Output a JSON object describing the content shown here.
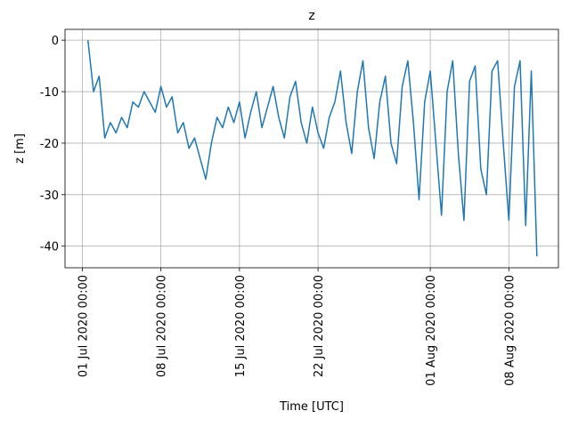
{
  "chart_data": {
    "type": "line",
    "title": "z",
    "x_label": "Time  [UTC]",
    "y_label": "z  [m]",
    "color": "#1f77b4",
    "grid": true,
    "x": [
      "2020-07-01 12:00",
      "2020-07-02 00:00",
      "2020-07-02 12:00",
      "2020-07-03 00:00",
      "2020-07-03 12:00",
      "2020-07-04 00:00",
      "2020-07-04 12:00",
      "2020-07-05 00:00",
      "2020-07-05 12:00",
      "2020-07-06 00:00",
      "2020-07-06 12:00",
      "2020-07-07 00:00",
      "2020-07-07 12:00",
      "2020-07-08 00:00",
      "2020-07-08 12:00",
      "2020-07-09 00:00",
      "2020-07-09 12:00",
      "2020-07-10 00:00",
      "2020-07-10 12:00",
      "2020-07-11 00:00",
      "2020-07-11 12:00",
      "2020-07-12 00:00",
      "2020-07-12 12:00",
      "2020-07-13 00:00",
      "2020-07-13 12:00",
      "2020-07-14 00:00",
      "2020-07-14 12:00",
      "2020-07-15 00:00",
      "2020-07-15 12:00",
      "2020-07-16 00:00",
      "2020-07-16 12:00",
      "2020-07-17 00:00",
      "2020-07-17 12:00",
      "2020-07-18 00:00",
      "2020-07-18 12:00",
      "2020-07-19 00:00",
      "2020-07-19 12:00",
      "2020-07-20 00:00",
      "2020-07-20 12:00",
      "2020-07-21 00:00",
      "2020-07-21 12:00",
      "2020-07-22 00:00",
      "2020-07-22 12:00",
      "2020-07-23 00:00",
      "2020-07-23 12:00",
      "2020-07-24 00:00",
      "2020-07-24 12:00",
      "2020-07-25 00:00",
      "2020-07-25 12:00",
      "2020-07-26 00:00",
      "2020-07-26 12:00",
      "2020-07-27 00:00",
      "2020-07-27 12:00",
      "2020-07-28 00:00",
      "2020-07-28 12:00",
      "2020-07-29 00:00",
      "2020-07-29 12:00",
      "2020-07-30 00:00",
      "2020-07-30 12:00",
      "2020-07-31 00:00",
      "2020-07-31 12:00",
      "2020-08-01 00:00",
      "2020-08-01 12:00",
      "2020-08-02 00:00",
      "2020-08-02 12:00",
      "2020-08-03 00:00",
      "2020-08-03 12:00",
      "2020-08-04 00:00",
      "2020-08-04 12:00",
      "2020-08-05 00:00",
      "2020-08-05 12:00",
      "2020-08-06 00:00",
      "2020-08-06 12:00",
      "2020-08-07 00:00",
      "2020-08-07 12:00",
      "2020-08-08 00:00",
      "2020-08-08 12:00",
      "2020-08-09 00:00",
      "2020-08-09 12:00",
      "2020-08-10 00:00",
      "2020-08-10 12:00"
    ],
    "values": [
      0,
      -10,
      -7,
      -19,
      -16,
      -18,
      -15,
      -17,
      -12,
      -13,
      -10,
      -12,
      -14,
      -9,
      -13,
      -11,
      -18,
      -16,
      -21,
      -19,
      -23,
      -27,
      -20,
      -15,
      -17,
      -13,
      -16,
      -12,
      -19,
      -14,
      -10,
      -17,
      -13,
      -9,
      -15,
      -19,
      -11,
      -8,
      -16,
      -20,
      -13,
      -18,
      -21,
      -15,
      -12,
      -6,
      -16,
      -22,
      -10,
      -4,
      -17,
      -23,
      -12,
      -7,
      -20,
      -24,
      -9,
      -4,
      -16,
      -31,
      -12,
      -6,
      -20,
      -34,
      -10,
      -4,
      -22,
      -35,
      -8,
      -5,
      -25,
      -30,
      -6,
      -4,
      -20,
      -35,
      -9,
      -4,
      -36,
      -6,
      -42
    ],
    "xlim": [
      "2020-06-29 11:00",
      "2020-08-12 10:00"
    ],
    "xticks": [
      {
        "value": "2020-07-01 00:00",
        "label": "01 Jul 2020 00:00"
      },
      {
        "value": "2020-07-08 00:00",
        "label": "08 Jul 2020 00:00"
      },
      {
        "value": "2020-07-15 00:00",
        "label": "15 Jul 2020 00:00"
      },
      {
        "value": "2020-07-22 00:00",
        "label": "22 Jul 2020 00:00"
      },
      {
        "value": "2020-08-01 00:00",
        "label": "01 Aug 2020 00:00"
      },
      {
        "value": "2020-08-08 00:00",
        "label": "08 Aug 2020 00:00"
      }
    ],
    "ylim": [
      -44.2,
      2.1
    ],
    "yticks": [
      0,
      -10,
      -20,
      -30,
      -40
    ]
  }
}
